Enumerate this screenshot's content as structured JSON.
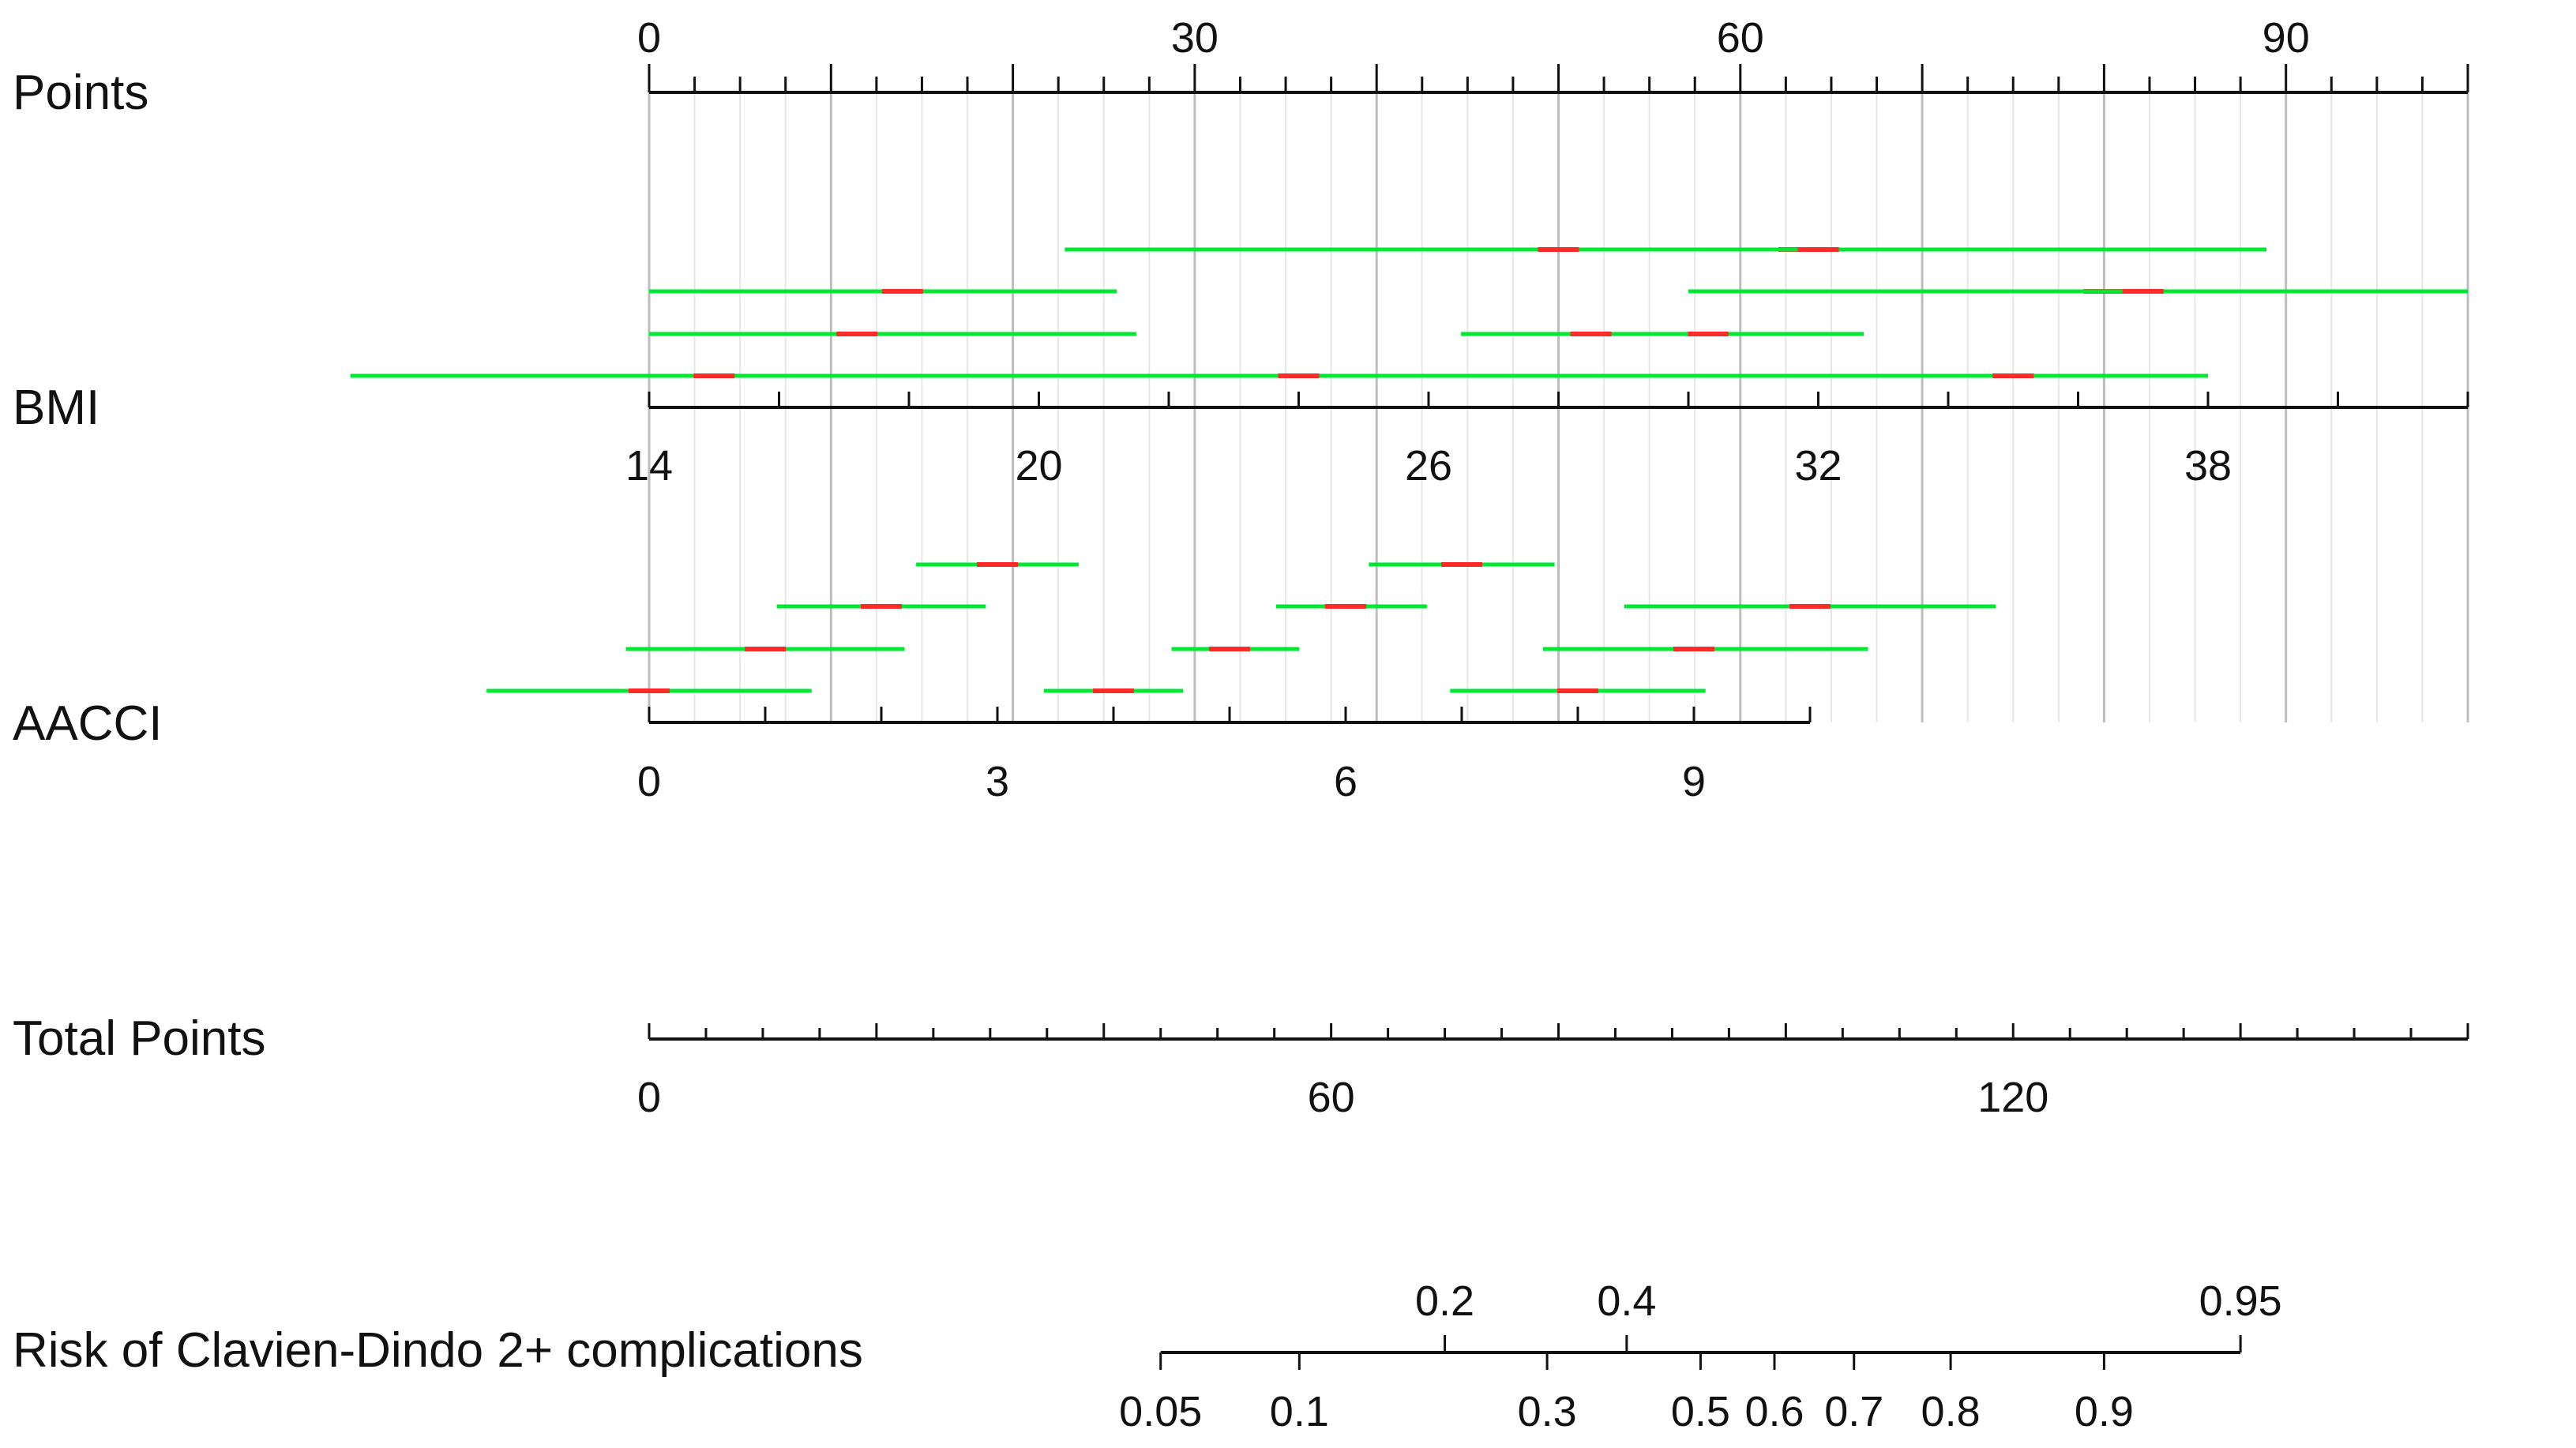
{
  "chart_data": {
    "type": "nomogram",
    "points": {
      "label": "Points",
      "range": [
        0,
        100
      ],
      "labeled_ticks": [
        0,
        30,
        60,
        90
      ],
      "minor_step": 2.5
    },
    "bmi": {
      "label": "BMI",
      "range": [
        14,
        42
      ],
      "labeled_ticks": [
        14,
        20,
        26,
        32,
        38
      ],
      "minor_step": 2,
      "intervals": [
        {
          "row": 1,
          "low": 14.0,
          "high": 21.2,
          "center": 17.9
        },
        {
          "row": 2,
          "low": 14.0,
          "high": 21.5,
          "center": 17.2
        },
        {
          "row": 2,
          "low": 26.5,
          "high": 32.7,
          "center": 30.3
        },
        {
          "row": 1,
          "low": 32.0,
          "high": 38.2,
          "center": 36.4
        },
        {
          "row": 0,
          "low": 20.4,
          "high": 30.0,
          "center": 28.0
        },
        {
          "row": 1,
          "low": 30.0,
          "high": 42.0,
          "center": 37.0
        },
        {
          "row": 3,
          "low": 9.4,
          "high": 35.8,
          "center": 15.0
        },
        {
          "row": 0,
          "low": 29.5,
          "high": 38.9,
          "center": 31.7
        },
        {
          "row": 3,
          "low": 33.0,
          "high": 38.0,
          "center": 35.0
        },
        {
          "row": 3,
          "low": 20.5,
          "high": 25.0,
          "center": 24.0
        },
        {
          "row": 2,
          "low": 28.0,
          "high": 30.0,
          "center": 28.5
        },
        {
          "row": 0,
          "low": 30.0,
          "high": 38.0,
          "center": 32.0
        }
      ]
    },
    "aacci": {
      "label": "AACCI",
      "range": [
        0,
        10
      ],
      "labeled_ticks": [
        0,
        3,
        6,
        9
      ],
      "minor_step": 1,
      "intervals": [
        {
          "row": 3,
          "low": -1.4,
          "high": 1.4,
          "center": 0.0
        },
        {
          "row": 3,
          "low": 3.4,
          "high": 4.6,
          "center": 4.0
        },
        {
          "row": 3,
          "low": 6.9,
          "high": 9.1,
          "center": 8.0
        },
        {
          "row": 2,
          "low": -0.2,
          "high": 2.2,
          "center": 1.0
        },
        {
          "row": 2,
          "low": 4.5,
          "high": 5.6,
          "center": 5.0
        },
        {
          "row": 2,
          "low": 7.7,
          "high": 10.5,
          "center": 9.0
        },
        {
          "row": 1,
          "low": 1.1,
          "high": 2.9,
          "center": 2.0
        },
        {
          "row": 1,
          "low": 5.4,
          "high": 6.7,
          "center": 6.0
        },
        {
          "row": 1,
          "low": 8.4,
          "high": 11.6,
          "center": 10.0
        },
        {
          "row": 0,
          "low": 2.3,
          "high": 3.7,
          "center": 3.0
        },
        {
          "row": 0,
          "low": 6.2,
          "high": 7.8,
          "center": 7.0
        }
      ]
    },
    "total_points": {
      "label": "Total Points",
      "range": [
        0,
        160
      ],
      "labeled_ticks": [
        0,
        60,
        120
      ],
      "minor_step": 5
    },
    "risk": {
      "label": "Risk of Clavien-Dindo 2+ complications",
      "ticks": [
        {
          "value": 0.05,
          "label": "0.05",
          "position": "below",
          "total_points": 45
        },
        {
          "value": 0.1,
          "label": "0.1",
          "position": "below",
          "total_points": 57.2
        },
        {
          "value": 0.2,
          "label": "0.2",
          "position": "above",
          "total_points": 70
        },
        {
          "value": 0.3,
          "label": "0.3",
          "position": "below",
          "total_points": 79
        },
        {
          "value": 0.4,
          "label": "0.4",
          "position": "above",
          "total_points": 86
        },
        {
          "value": 0.5,
          "label": "0.5",
          "position": "below",
          "total_points": 92.5
        },
        {
          "value": 0.6,
          "label": "0.6",
          "position": "below",
          "total_points": 99
        },
        {
          "value": 0.7,
          "label": "0.7",
          "position": "below",
          "total_points": 106
        },
        {
          "value": 0.8,
          "label": "0.8",
          "position": "below",
          "total_points": 114.5
        },
        {
          "value": 0.9,
          "label": "0.9",
          "position": "below",
          "total_points": 128
        },
        {
          "value": 0.95,
          "label": "0.95",
          "position": "above",
          "total_points": 140
        }
      ]
    },
    "colors": {
      "axis": "#111111",
      "grid_major": "#bdbdbd",
      "grid_minor": "#e6e6e6",
      "interval": "#00e833",
      "center": "#ff2a2a"
    }
  }
}
